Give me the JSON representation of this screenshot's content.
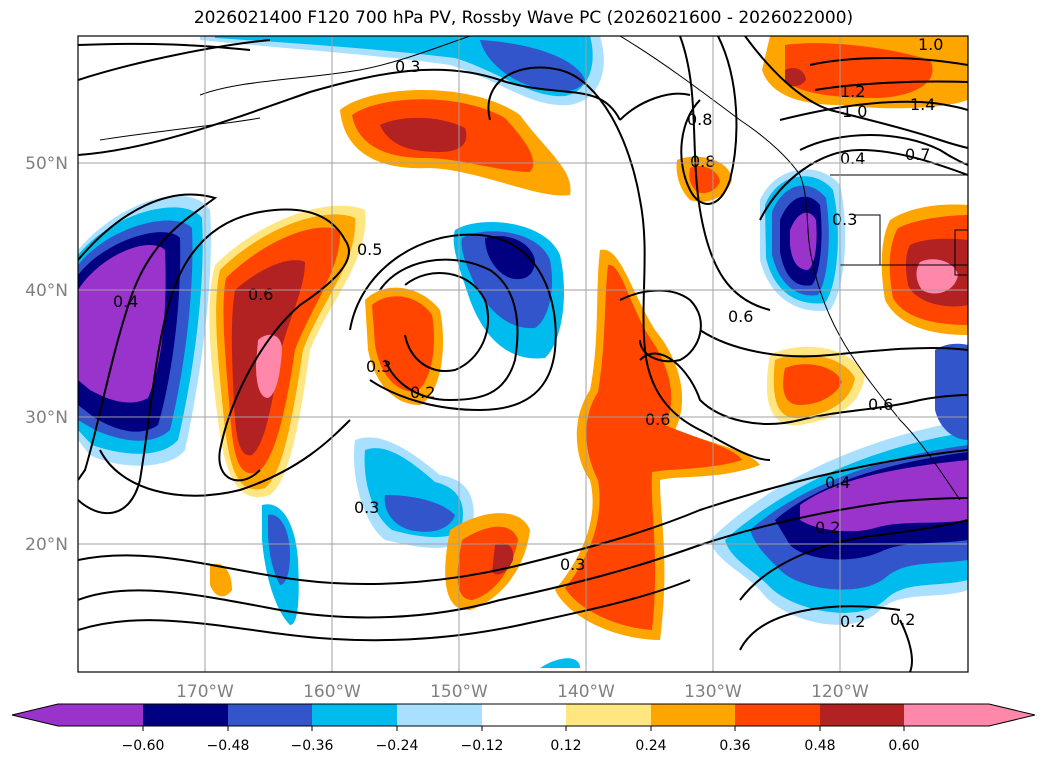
{
  "title": "2026021400 F120 700 hPa PV, Rossby Wave PC (2026021600 - 2026022000)",
  "map": {
    "lat_labels": [
      "50°N",
      "40°N",
      "30°N",
      "20°N"
    ],
    "lon_labels": [
      "170°W",
      "160°W",
      "150°W",
      "140°W",
      "130°W",
      "120°W"
    ],
    "contour_labels": [
      "1.0",
      "1.2",
      "1.0",
      "1.4",
      "0.4",
      "0.7",
      "0.8",
      "0.8",
      "0.3",
      "0.6",
      "0.5",
      "0.4",
      "0.6",
      "0.3",
      "0.2",
      "0.6",
      "0.6",
      "0.4",
      "0.2",
      "0.3",
      "0.3",
      "0.2",
      "0.2",
      "0.3"
    ]
  },
  "colorbar": {
    "ticks": [
      "−0.60",
      "−0.48",
      "−0.36",
      "−0.24",
      "−0.12",
      "0.12",
      "0.24",
      "0.36",
      "0.48",
      "0.60"
    ],
    "colors": [
      "#9933cc",
      "#000080",
      "#3355cc",
      "#00bbee",
      "#aae0ff",
      "#ffffff",
      "#ffe680",
      "#ffa500",
      "#ff4500",
      "#b22222",
      "#ff88aa"
    ]
  }
}
